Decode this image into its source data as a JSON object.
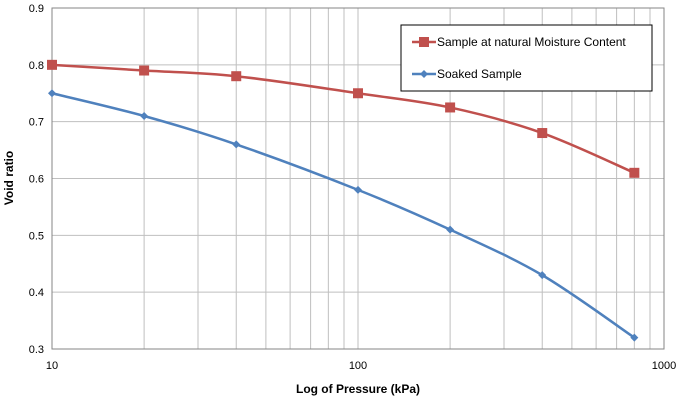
{
  "chart_data": {
    "type": "line",
    "title": "",
    "xlabel": "Log of Pressure (kPa)",
    "ylabel": "Void ratio",
    "xscale": "log",
    "xlim": [
      10,
      1000
    ],
    "ylim": [
      0.3,
      0.9
    ],
    "xticks": [
      "10",
      "100",
      "1000"
    ],
    "yticks": [
      "0.3",
      "0.4",
      "0.5",
      "0.6",
      "0.7",
      "0.8",
      "0.9"
    ],
    "grid": true,
    "legend_position": "top-right",
    "x": [
      10,
      20,
      40,
      100,
      200,
      400,
      800
    ],
    "series": [
      {
        "name": "Sample at natural Moisture Content",
        "color": "#c0504d",
        "marker": "square",
        "values": [
          0.8,
          0.79,
          0.78,
          0.75,
          0.725,
          0.68,
          0.61
        ]
      },
      {
        "name": "Soaked Sample",
        "color": "#4f81bd",
        "marker": "diamond",
        "values": [
          0.75,
          0.71,
          0.66,
          0.58,
          0.51,
          0.43,
          0.32
        ]
      }
    ]
  }
}
